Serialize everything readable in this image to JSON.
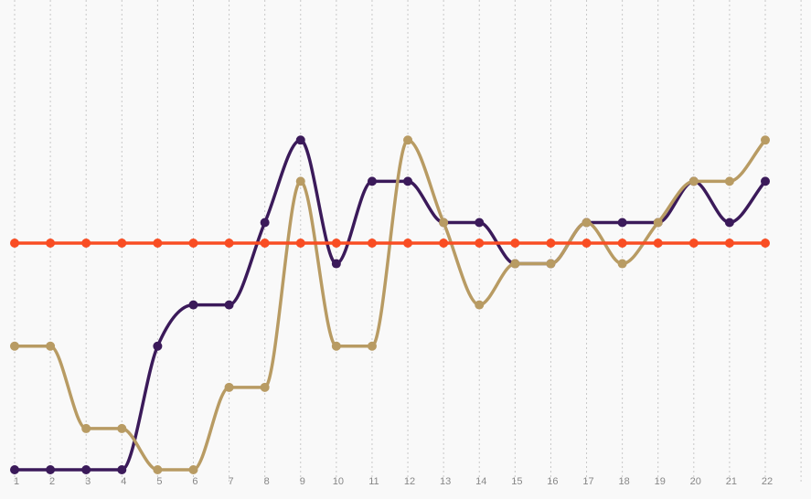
{
  "chart_data": {
    "type": "line",
    "x": [
      1,
      2,
      3,
      4,
      5,
      6,
      7,
      8,
      9,
      10,
      11,
      12,
      13,
      14,
      15,
      16,
      17,
      18,
      19,
      20,
      21,
      22
    ],
    "ylim": [
      0,
      11.4
    ],
    "grid": {
      "vertical": true,
      "horizontal": false,
      "style": "dotted"
    },
    "legend": "none",
    "series": [
      {
        "color": "#3b1a5a",
        "values": [
          0,
          0,
          0,
          0,
          3,
          4,
          4,
          6,
          8,
          5,
          7,
          7,
          6,
          6,
          5,
          5,
          6,
          6,
          6,
          7,
          6,
          7
        ]
      },
      {
        "color": "#b89b63",
        "values": [
          3,
          3,
          1,
          1,
          0,
          0,
          2,
          2,
          7,
          3,
          3,
          8,
          6,
          4,
          5,
          5,
          6,
          5,
          6,
          7,
          7,
          8
        ]
      },
      {
        "color": "#f94d23",
        "values": [
          5.5,
          5.5,
          5.5,
          5.5,
          5.5,
          5.5,
          5.5,
          5.5,
          5.5,
          5.5,
          5.5,
          5.5,
          5.5,
          5.5,
          5.5,
          5.5,
          5.5,
          5.5,
          5.5,
          5.5,
          5.5,
          5.5
        ]
      }
    ]
  }
}
